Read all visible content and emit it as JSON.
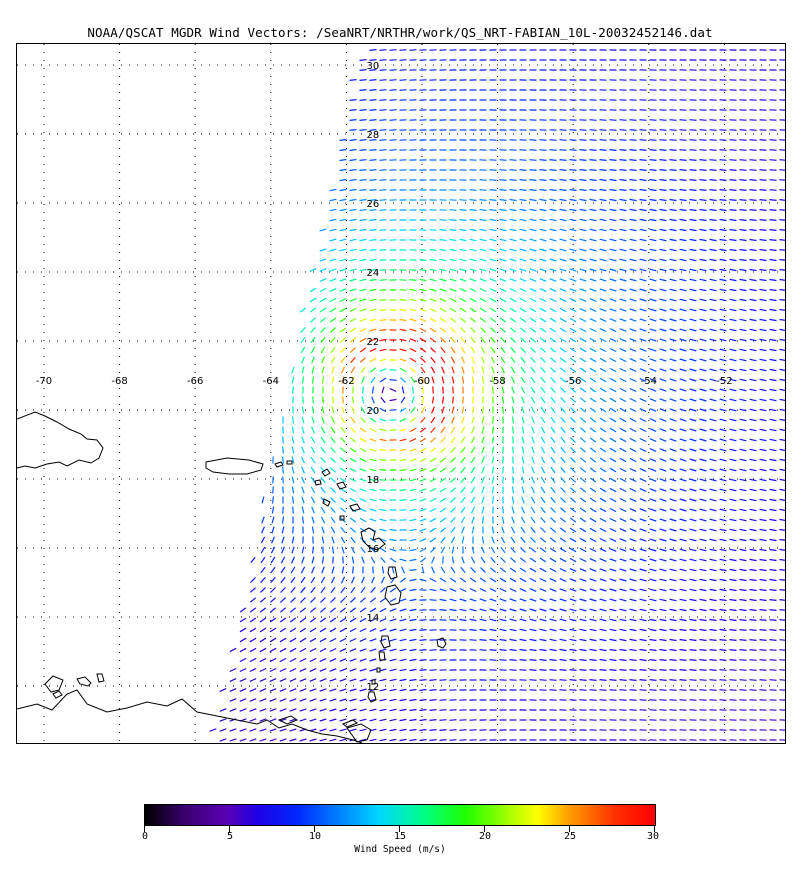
{
  "title": "NOAA/QSCAT MGDR Wind Vectors: /SeaNRT/NRTHR/work/QS_NRT-FABIAN_10L-20032452146.dat",
  "map": {
    "lon_labels": [
      "-70",
      "-68",
      "-66",
      "-64",
      "-62",
      "-60",
      "-58",
      "-56",
      "-54",
      "-52"
    ],
    "lat_labels": [
      "30",
      "28",
      "26",
      "24",
      "22",
      "20",
      "18",
      "16",
      "14",
      "12"
    ],
    "storm_center": {
      "lon": -60.8,
      "lat": 20.5
    },
    "max_wind_ms": 30
  },
  "colorbar": {
    "tick_labels": [
      "0",
      "5",
      "10",
      "15",
      "20",
      "25",
      "30"
    ],
    "title": "Wind Speed (m/s)",
    "range": [
      0,
      30
    ]
  }
}
